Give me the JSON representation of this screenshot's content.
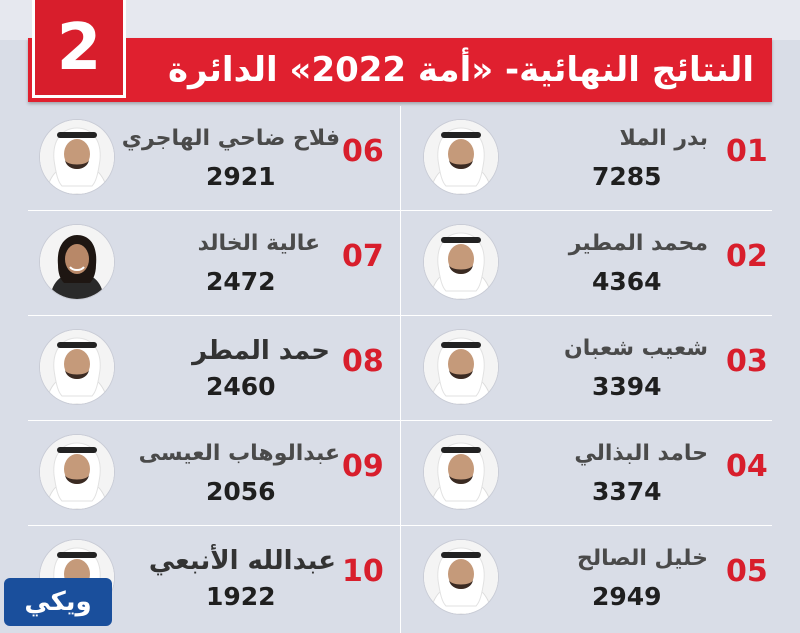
{
  "header": {
    "title": "النتائج النهائية- «أمة 2022» الدائرة",
    "district_number": "2",
    "accent_color": "#e0202f"
  },
  "candidates": [
    {
      "rank": "01",
      "name": "بدر الملا",
      "votes": "7285",
      "portrait": "man-ghutra-portrait-icon"
    },
    {
      "rank": "02",
      "name": "محمد المطير",
      "votes": "4364",
      "portrait": "man-ghutra-portrait-icon"
    },
    {
      "rank": "03",
      "name": "شعيب شعبان",
      "votes": "3394",
      "portrait": "man-ghutra-portrait-icon"
    },
    {
      "rank": "04",
      "name": "حامد البذالي",
      "votes": "3374",
      "portrait": "man-ghutra-portrait-icon"
    },
    {
      "rank": "05",
      "name": "خليل الصالح",
      "votes": "2949",
      "portrait": "man-ghutra-portrait-icon"
    },
    {
      "rank": "06",
      "name": "فلاح ضاحي الهاجري",
      "votes": "2921",
      "portrait": "man-ghutra-portrait-icon"
    },
    {
      "rank": "07",
      "name": "عالية الخالد",
      "votes": "2472",
      "portrait": "woman-portrait-icon"
    },
    {
      "rank": "08",
      "name": "حمد المطر",
      "votes": "2460",
      "portrait": "man-ghutra-portrait-icon"
    },
    {
      "rank": "09",
      "name": "عبدالوهاب العيسى",
      "votes": "2056",
      "portrait": "man-ghutra-portrait-icon"
    },
    {
      "rank": "10",
      "name": "عبدالله الأنبعي",
      "votes": "1922",
      "portrait": "man-ghutra-portrait-icon"
    }
  ],
  "watermark": {
    "text": "ويكي"
  }
}
